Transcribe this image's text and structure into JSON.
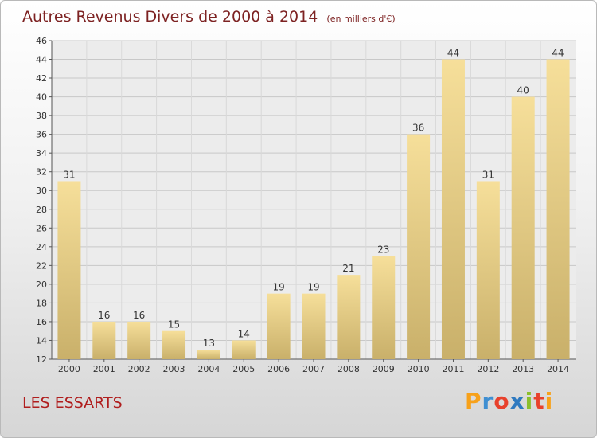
{
  "chart_data": {
    "type": "bar",
    "title": "Autres Revenus Divers de 2000 à 2014",
    "subtitle": "(en milliers d'€)",
    "categories": [
      "2000",
      "2001",
      "2002",
      "2003",
      "2004",
      "2005",
      "2006",
      "2007",
      "2008",
      "2009",
      "2010",
      "2011",
      "2012",
      "2013",
      "2014"
    ],
    "values": [
      31,
      16,
      16,
      15,
      13,
      14,
      19,
      19,
      21,
      23,
      36,
      44,
      31,
      40,
      44
    ],
    "ylim": [
      12,
      46
    ],
    "yticks": [
      "12",
      "14",
      "16",
      "18",
      "20",
      "22",
      "24",
      "26",
      "28",
      "30",
      "32",
      "34",
      "36",
      "38",
      "40",
      "42",
      "44",
      "46"
    ],
    "grid": true,
    "bar_color_light": "#f6df9a",
    "bar_color_dark": "#c9b06a"
  },
  "location": "LES ESSARTS",
  "brand": {
    "name": "Proxiti",
    "letters": [
      "P",
      "r",
      "o",
      "x",
      "i",
      "t",
      "i"
    ],
    "colors": [
      "#f7a11a",
      "#3f8fd2",
      "#e8412c",
      "#2f7ac0",
      "#8bbf2c",
      "#e8412c",
      "#f7a11a"
    ]
  }
}
